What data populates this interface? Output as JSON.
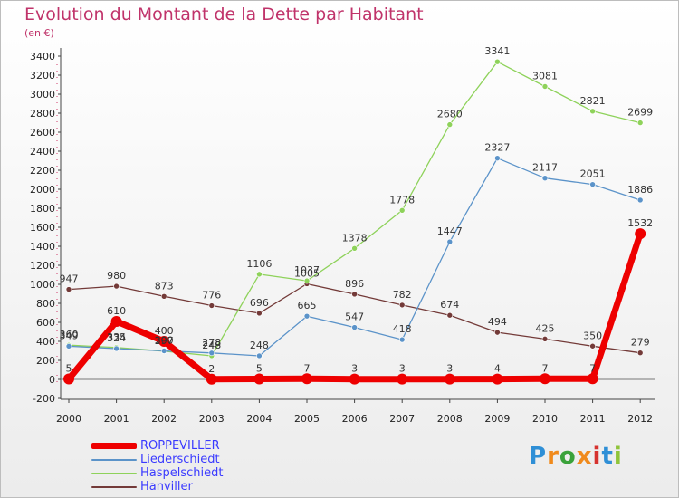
{
  "header": {
    "title": "Evolution du Montant de la Dette par Habitant",
    "unit": "(en €)"
  },
  "logo": {
    "text": "Proxiti",
    "colors": [
      "#2f8fd6",
      "#f08a1c",
      "#3aa23a",
      "#f08a1c",
      "#d6322f",
      "#2f8fd6",
      "#8fc43a"
    ]
  },
  "chart_data": {
    "type": "line",
    "title": "Evolution du Montant de la Dette par Habitant",
    "ylabel": "(en €)",
    "xlabel": "",
    "x": [
      "2000",
      "2001",
      "2002",
      "2003",
      "2004",
      "2005",
      "2006",
      "2007",
      "2008",
      "2009",
      "2010",
      "2011",
      "2012"
    ],
    "ylim": [
      -200,
      3400
    ],
    "yticks": [
      -200,
      0,
      200,
      400,
      600,
      800,
      1000,
      1200,
      1400,
      1600,
      1800,
      2000,
      2200,
      2400,
      2600,
      2800,
      3000,
      3200,
      3400
    ],
    "grid": false,
    "legend_placement": "bottom-left",
    "series": [
      {
        "name": "ROPPEVILLER",
        "color": "#ee0000",
        "values": [
          5,
          610,
          400,
          2,
          5,
          7,
          3,
          3,
          3,
          4,
          7,
          7,
          1532
        ]
      },
      {
        "name": "Liederschiedt",
        "color": "#5b93c9",
        "values": [
          349,
          324,
          300,
          278,
          248,
          665,
          547,
          418,
          1447,
          2327,
          2117,
          2051,
          1886
        ]
      },
      {
        "name": "Haspelschiedt",
        "color": "#8ed25a",
        "values": [
          360,
          335,
          297,
          248,
          1106,
          1037,
          1378,
          1778,
          2680,
          3341,
          3081,
          2821,
          2699
        ]
      },
      {
        "name": "Hanviller",
        "color": "#733a38",
        "values": [
          947,
          980,
          873,
          776,
          696,
          1005,
          896,
          782,
          674,
          494,
          425,
          350,
          279
        ]
      }
    ]
  }
}
